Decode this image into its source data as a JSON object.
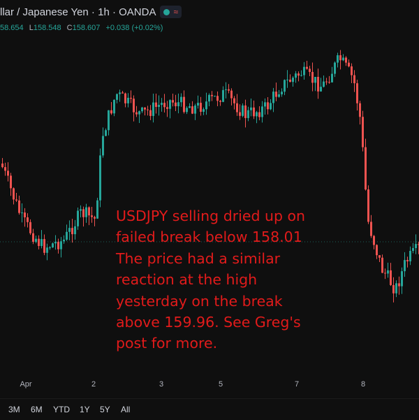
{
  "header": {
    "symbol_title": "llar / Japanese Yen · 1h · OANDA",
    "status_icon": "market-open-dot",
    "ohlc_prefix": "58.654",
    "low_key": "L",
    "low_value": "158.548",
    "close_key": "C",
    "close_value": "158.607",
    "change": "+0.038 (+0.02%)"
  },
  "annotation": {
    "lines": [
      "USDJPY selling dried up on",
      "failed break below 158.01",
      "The price had a similar",
      "reaction at the high",
      "yesterday on the break",
      "above 159.96. See Greg's",
      "post for more."
    ],
    "color": "#e21b1b"
  },
  "xaxis": {
    "labels": [
      "Apr",
      "2",
      "3",
      "5",
      "7",
      "8"
    ]
  },
  "range_bar": {
    "buttons": [
      "3M",
      "6M",
      "YTD",
      "1Y",
      "5Y",
      "All"
    ]
  },
  "colors": {
    "up": "#26a69a",
    "down": "#ef5350",
    "background": "#0f0f0f"
  },
  "chart_data": {
    "type": "candlestick",
    "symbol": "USDJPY",
    "timeframe": "1h",
    "x_labels": [
      "Apr",
      "2",
      "3",
      "5",
      "7",
      "8"
    ],
    "points": [
      [
        "Apr",
        158.5
      ],
      [
        "2",
        158.8
      ],
      [
        "2",
        159.7
      ],
      [
        "3",
        159.6
      ],
      [
        "5",
        159.7
      ],
      [
        "5",
        159.9
      ],
      [
        "7",
        159.96
      ],
      [
        "7",
        159.9
      ],
      [
        "7",
        159.7
      ],
      [
        "8",
        158.4
      ],
      [
        "8",
        158.01
      ],
      [
        "8",
        158.6
      ]
    ],
    "annotated_levels": [
      158.01,
      159.96
    ]
  }
}
